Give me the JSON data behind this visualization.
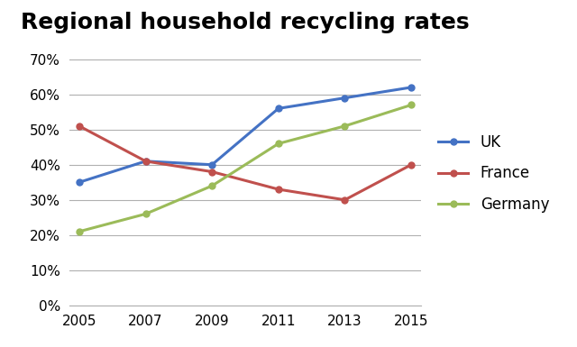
{
  "title": "Regional household recycling rates",
  "years": [
    2005,
    2007,
    2009,
    2011,
    2013,
    2015
  ],
  "series": [
    {
      "label": "UK",
      "color": "#4472C4",
      "values": [
        0.35,
        0.41,
        0.4,
        0.56,
        0.59,
        0.62
      ]
    },
    {
      "label": "France",
      "color": "#C0504D",
      "values": [
        0.51,
        0.41,
        0.38,
        0.33,
        0.3,
        0.4
      ]
    },
    {
      "label": "Germany",
      "color": "#9BBB59",
      "values": [
        0.21,
        0.26,
        0.34,
        0.46,
        0.51,
        0.57
      ]
    }
  ],
  "ylim": [
    0.0,
    0.75
  ],
  "yticks": [
    0.0,
    0.1,
    0.2,
    0.3,
    0.4,
    0.5,
    0.6,
    0.7
  ],
  "title_fontsize": 18,
  "legend_fontsize": 12,
  "tick_fontsize": 11,
  "line_width": 2.2,
  "marker": "o",
  "marker_size": 5,
  "background_color": "#ffffff",
  "grid_color": "#b0b0b0"
}
